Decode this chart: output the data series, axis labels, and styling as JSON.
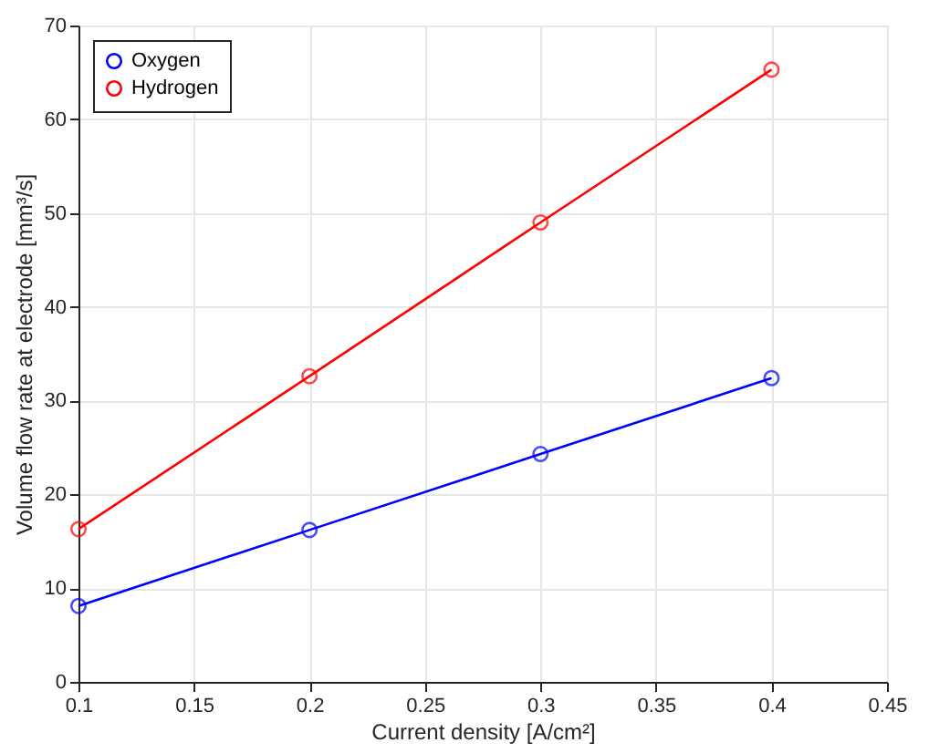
{
  "chart_data": {
    "type": "line",
    "xlabel": "Current density [A/cm²]",
    "ylabel": "Volume flow rate at electrode [mm³/s]",
    "x": [
      0.1,
      0.2,
      0.3,
      0.4
    ],
    "series": [
      {
        "name": "Oxygen",
        "color": "#0000ff",
        "values": [
          8.1,
          16.2,
          24.3,
          32.4
        ]
      },
      {
        "name": "Hydrogen",
        "color": "#ff0000",
        "values": [
          16.3,
          32.6,
          49.0,
          65.3
        ]
      }
    ],
    "xlim": [
      0.1,
      0.45
    ],
    "xticks": [
      0.1,
      0.15,
      0.2,
      0.25,
      0.3,
      0.35,
      0.4,
      0.45
    ],
    "ylim": [
      0,
      70
    ],
    "yticks": [
      0,
      10,
      20,
      30,
      40,
      50,
      60,
      70
    ],
    "grid": true,
    "legend": "top left",
    "marker": "circle",
    "line_style": "solid"
  }
}
